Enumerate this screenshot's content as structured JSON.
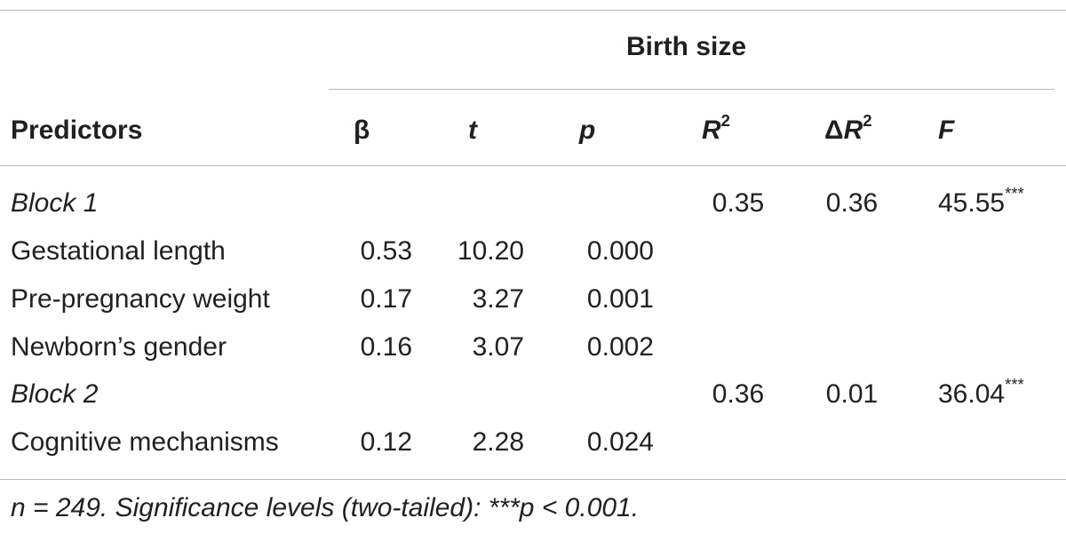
{
  "table": {
    "group_header": "Birth size",
    "columns": {
      "predictors": "Predictors",
      "beta": "β",
      "t": "t",
      "p": "p",
      "r2_base": "R",
      "r2_sup": "2",
      "dr2_delta": "Δ",
      "dr2_base": "R",
      "dr2_sup": "2",
      "f": "F"
    },
    "rows": [
      {
        "label": "Block 1",
        "beta": "",
        "t": "",
        "p": "",
        "r2": "0.35",
        "dr2": "0.36",
        "f": "45.55",
        "f_sig": "***"
      },
      {
        "label": "Gestational length",
        "beta": "0.53",
        "t": "10.20",
        "p": "0.000",
        "r2": "",
        "dr2": "",
        "f": "",
        "f_sig": ""
      },
      {
        "label": "Pre-pregnancy weight",
        "beta": "0.17",
        "t": "3.27",
        "p": "0.001",
        "r2": "",
        "dr2": "",
        "f": "",
        "f_sig": ""
      },
      {
        "label": "Newborn’s gender",
        "beta": "0.16",
        "t": "3.07",
        "p": "0.002",
        "r2": "",
        "dr2": "",
        "f": "",
        "f_sig": ""
      },
      {
        "label": "Block 2",
        "beta": "",
        "t": "",
        "p": "",
        "r2": "0.36",
        "dr2": "0.01",
        "f": "36.04",
        "f_sig": "***"
      },
      {
        "label": "Cognitive mechanisms",
        "beta": "0.12",
        "t": "2.28",
        "p": "0.024",
        "r2": "",
        "dr2": "",
        "f": "",
        "f_sig": ""
      }
    ],
    "footnote": "n = 249. Significance levels (two-tailed): ***p < 0.001."
  }
}
